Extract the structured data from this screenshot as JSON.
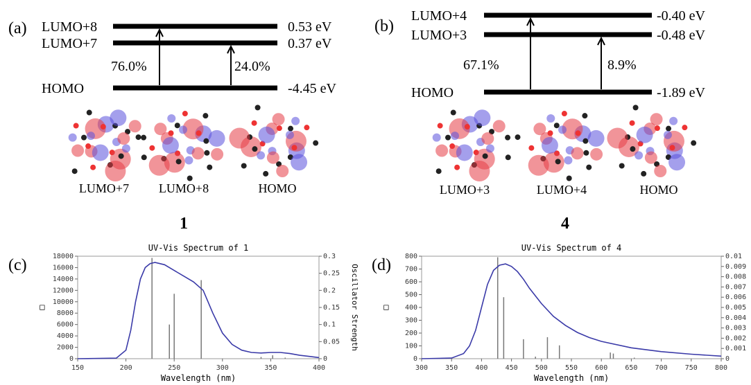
{
  "panels": [
    {
      "label": "(a)",
      "levels": [
        {
          "name": "LUMO+8",
          "energy": "0.53 eV"
        },
        {
          "name": "LUMO+7",
          "energy": "0.37 eV"
        },
        {
          "name": "HOMO",
          "energy": "-4.45 eV"
        }
      ],
      "percentages": [
        "76.0%",
        "24.0%"
      ],
      "orbitals": [
        "LUMO+7",
        "LUMO+8",
        "HOMO"
      ],
      "compound": "1"
    },
    {
      "label": "(b)",
      "levels": [
        {
          "name": "LUMO+4",
          "energy": "-0.40 eV"
        },
        {
          "name": "LUMO+3",
          "energy": "-0.48 eV"
        },
        {
          "name": "HOMO",
          "energy": "-1.89 eV"
        }
      ],
      "percentages": [
        "67.1%",
        "8.9%"
      ],
      "orbitals": [
        "LUMO+3",
        "LUMO+4",
        "HOMO"
      ],
      "compound": "4"
    }
  ],
  "chart_data": [
    {
      "type": "line",
      "panel_label": "(c)",
      "title": "UV-Vis Spectrum of 1",
      "x_label": "Wavelength (nm)",
      "y_label": "□",
      "y2_label": "Oscillator Strength",
      "xlim": [
        150,
        400
      ],
      "xticks": [
        150,
        200,
        250,
        300,
        350,
        400
      ],
      "ylim": [
        0,
        18000
      ],
      "yticks": [
        0,
        2000,
        4000,
        6000,
        8000,
        10000,
        12000,
        14000,
        16000,
        18000
      ],
      "y2lim": [
        0,
        0.3
      ],
      "y2ticks": [
        0,
        0.05,
        0.1,
        0.15,
        0.2,
        0.25,
        0.3
      ],
      "x": [
        150,
        190,
        200,
        205,
        210,
        215,
        220,
        225,
        230,
        240,
        250,
        260,
        270,
        280,
        290,
        300,
        310,
        320,
        330,
        340,
        350,
        360,
        370,
        380,
        390,
        400
      ],
      "values": [
        0,
        100,
        1500,
        5000,
        10000,
        14000,
        16000,
        16700,
        16900,
        16500,
        15500,
        14500,
        13500,
        12000,
        8000,
        4500,
        2500,
        1500,
        1100,
        1000,
        1100,
        1100,
        900,
        600,
        400,
        200
      ],
      "color": "#3a3aa8",
      "sticks": {
        "axis": "y2",
        "color": "#777777",
        "x": [
          227,
          245,
          250,
          278,
          340,
          352,
          365
        ],
        "values": [
          0.295,
          0.1,
          0.19,
          0.23,
          0.005,
          0.01,
          0.003
        ]
      }
    },
    {
      "type": "line",
      "panel_label": "(d)",
      "title": "UV-Vis Spectrum of 4",
      "x_label": "Wavelength (nm)",
      "y_label": "□",
      "y2_label": "",
      "xlim": [
        300,
        800
      ],
      "xticks": [
        300,
        350,
        400,
        450,
        500,
        550,
        600,
        650,
        700,
        750,
        800
      ],
      "ylim": [
        0,
        800
      ],
      "yticks": [
        0,
        100,
        200,
        300,
        400,
        500,
        600,
        700,
        800
      ],
      "y2lim": [
        0,
        0.01
      ],
      "y2ticks": [
        0,
        0.001,
        0.002,
        0.003,
        0.004,
        0.005,
        0.006,
        0.007,
        0.008,
        0.009,
        0.01
      ],
      "x": [
        300,
        350,
        370,
        380,
        390,
        400,
        410,
        420,
        430,
        440,
        450,
        460,
        470,
        480,
        500,
        520,
        540,
        560,
        580,
        600,
        650,
        700,
        750,
        800
      ],
      "values": [
        0,
        5,
        40,
        100,
        220,
        400,
        580,
        690,
        730,
        740,
        720,
        680,
        620,
        550,
        430,
        330,
        260,
        205,
        165,
        135,
        85,
        55,
        35,
        20
      ],
      "color": "#3a3aa8",
      "sticks": {
        "axis": "y2",
        "color": "#777777",
        "x": [
          427,
          437,
          470,
          490,
          510,
          530,
          615,
          620,
          655
        ],
        "values": [
          0.0099,
          0.006,
          0.0019,
          0.0002,
          0.0021,
          0.0013,
          0.0006,
          0.0005,
          0.0001
        ]
      }
    }
  ]
}
